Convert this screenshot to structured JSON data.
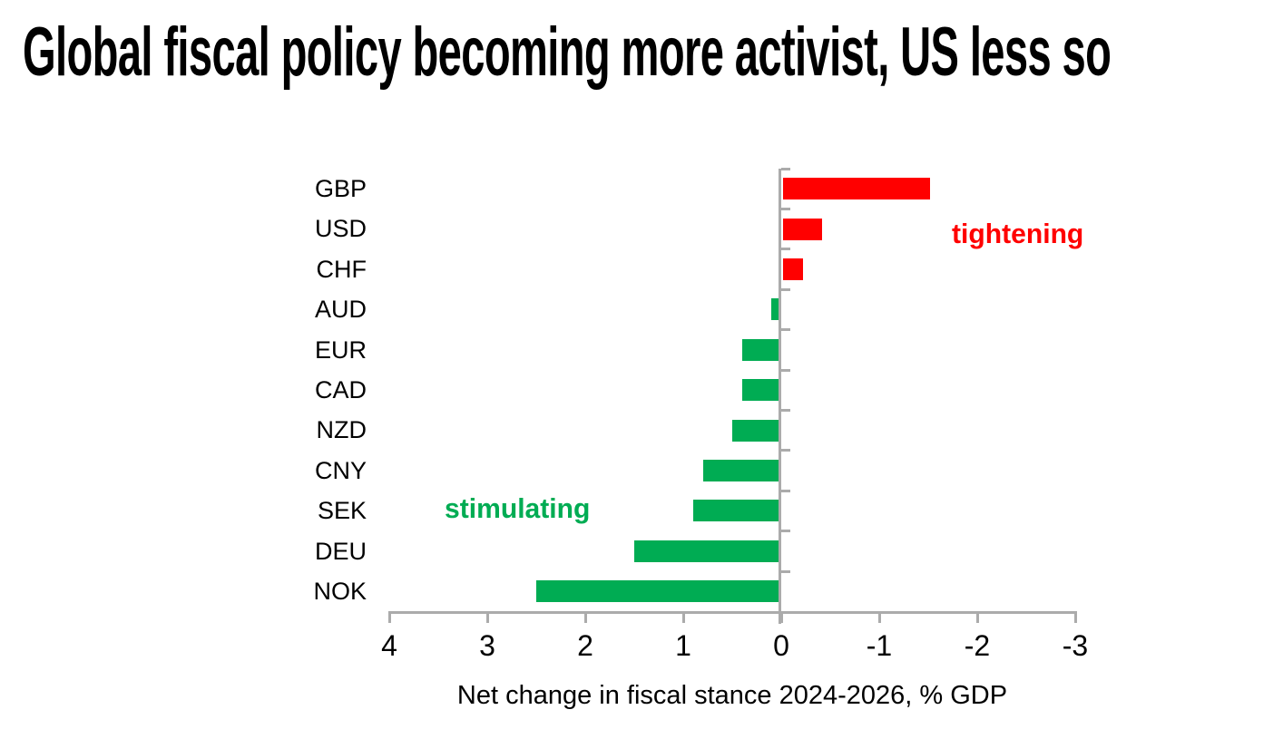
{
  "title": "Global fiscal policy becoming more activist, US less so",
  "annotations": {
    "tightening": "tightening",
    "stimulating": "stimulating"
  },
  "axis": {
    "xlabel": "Net change in fiscal stance 2024-2026, % GDP"
  },
  "chart_data": {
    "type": "bar",
    "orientation": "horizontal",
    "title": "Global fiscal policy becoming more activist, US less so",
    "categories": [
      "GBP",
      "USD",
      "CHF",
      "AUD",
      "EUR",
      "CAD",
      "NZD",
      "CNY",
      "SEK",
      "DEU",
      "NOK"
    ],
    "values": [
      -1.5,
      -0.4,
      -0.2,
      0.1,
      0.4,
      0.4,
      0.5,
      0.8,
      0.9,
      1.5,
      2.5
    ],
    "xlabel": "Net change in fiscal stance 2024-2026, % GDP",
    "x_ticks": [
      4,
      3,
      2,
      1,
      0,
      -1,
      -2,
      -3
    ],
    "xlim": [
      4,
      -3
    ],
    "x_axis_reversed": true,
    "grid": false,
    "legend": false,
    "value_sign_meaning": "positive = stimulating (green bars extend left), negative = tightening (red bars extend right)",
    "colors": {
      "stimulating": "#00ac53",
      "tightening": "#ff0000",
      "axis": "#ababab",
      "text": "#000000"
    },
    "annotations": [
      {
        "text": "tightening",
        "color": "#ff0000",
        "position": "right of USD bar"
      },
      {
        "text": "stimulating",
        "color": "#00ac53",
        "position": "left of SEK bar"
      }
    ]
  }
}
